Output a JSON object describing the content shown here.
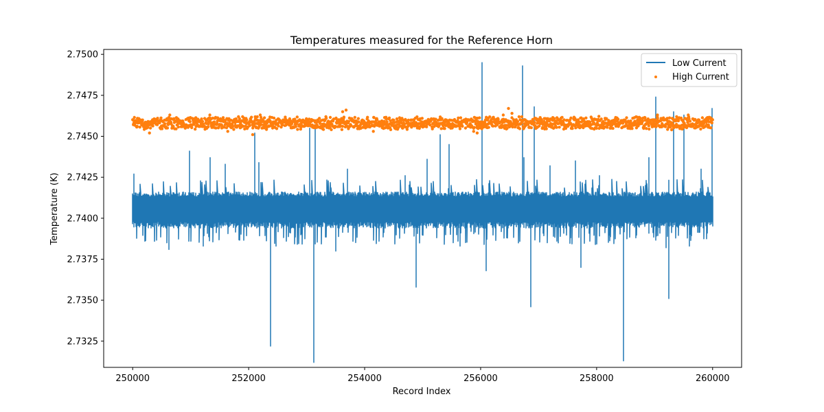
{
  "chart_data": {
    "type": "line",
    "title": "Temperatures measured for the Reference Horn",
    "xlabel": "Record Index",
    "ylabel": "Temperature (K)",
    "xlim": [
      249500,
      260500
    ],
    "ylim": [
      2.7309,
      2.7503
    ],
    "x_ticks": [
      250000,
      252000,
      254000,
      256000,
      258000,
      260000
    ],
    "x_tick_labels": [
      "250000",
      "252000",
      "254000",
      "256000",
      "258000",
      "260000"
    ],
    "y_ticks": [
      2.7325,
      2.735,
      2.7375,
      2.74,
      2.7425,
      2.745,
      2.7475,
      2.75
    ],
    "y_tick_labels": [
      "2.7325",
      "2.7350",
      "2.7375",
      "2.7400",
      "2.7425",
      "2.7450",
      "2.7475",
      "2.7500"
    ],
    "legend_position": "top-right",
    "series": [
      {
        "name": "Low Current",
        "kind": "line",
        "color": "#1f77b4",
        "x_range": [
          250000,
          260000
        ],
        "baseline": 2.7404,
        "band_low": 2.7396,
        "band_high": 2.7416,
        "upper_spikes": [
          {
            "x": 250020,
            "y": 2.7427
          },
          {
            "x": 250980,
            "y": 2.7441
          },
          {
            "x": 251330,
            "y": 2.7437
          },
          {
            "x": 252100,
            "y": 2.7452
          },
          {
            "x": 253050,
            "y": 2.7455
          },
          {
            "x": 253150,
            "y": 2.7457
          },
          {
            "x": 255300,
            "y": 2.7451
          },
          {
            "x": 255450,
            "y": 2.7445
          },
          {
            "x": 256020,
            "y": 2.7495
          },
          {
            "x": 256720,
            "y": 2.7493
          },
          {
            "x": 256920,
            "y": 2.7468
          },
          {
            "x": 259020,
            "y": 2.7474
          },
          {
            "x": 259330,
            "y": 2.7465
          },
          {
            "x": 259500,
            "y": 2.7463
          },
          {
            "x": 259990,
            "y": 2.7467
          },
          {
            "x": 251600,
            "y": 2.7433
          },
          {
            "x": 252180,
            "y": 2.7434
          },
          {
            "x": 253700,
            "y": 2.743
          },
          {
            "x": 254700,
            "y": 2.7426
          },
          {
            "x": 255080,
            "y": 2.7436
          },
          {
            "x": 256100,
            "y": 2.7434
          },
          {
            "x": 256750,
            "y": 2.7437
          },
          {
            "x": 257200,
            "y": 2.7432
          },
          {
            "x": 257640,
            "y": 2.7435
          },
          {
            "x": 258050,
            "y": 2.7426
          },
          {
            "x": 258900,
            "y": 2.7437
          },
          {
            "x": 259800,
            "y": 2.743
          }
        ],
        "lower_spikes": [
          {
            "x": 252380,
            "y": 2.7322
          },
          {
            "x": 253120,
            "y": 2.7312
          },
          {
            "x": 254890,
            "y": 2.7358
          },
          {
            "x": 256100,
            "y": 2.7368
          },
          {
            "x": 256860,
            "y": 2.7346
          },
          {
            "x": 257730,
            "y": 2.737
          },
          {
            "x": 258460,
            "y": 2.7313
          },
          {
            "x": 259250,
            "y": 2.7351
          },
          {
            "x": 250620,
            "y": 2.7381
          },
          {
            "x": 251220,
            "y": 2.7383
          },
          {
            "x": 252470,
            "y": 2.7383
          },
          {
            "x": 253500,
            "y": 2.738
          },
          {
            "x": 255650,
            "y": 2.7383
          },
          {
            "x": 257980,
            "y": 2.7384
          },
          {
            "x": 259200,
            "y": 2.7382
          },
          {
            "x": 259600,
            "y": 2.7383
          }
        ]
      },
      {
        "name": "High Current",
        "kind": "scatter",
        "color": "#ff7f0e",
        "x_range": [
          250000,
          260000
        ],
        "baseline": 2.7458,
        "band_low": 2.7455,
        "band_high": 2.7461,
        "outliers": [
          {
            "x": 250290,
            "y": 2.7452
          },
          {
            "x": 251640,
            "y": 2.7453
          },
          {
            "x": 252070,
            "y": 2.7451
          },
          {
            "x": 252200,
            "y": 2.7463
          },
          {
            "x": 253680,
            "y": 2.7466
          },
          {
            "x": 253620,
            "y": 2.7465
          },
          {
            "x": 254150,
            "y": 2.7453
          },
          {
            "x": 255880,
            "y": 2.7453
          },
          {
            "x": 255940,
            "y": 2.7452
          },
          {
            "x": 256390,
            "y": 2.7463
          },
          {
            "x": 256480,
            "y": 2.7467
          },
          {
            "x": 256540,
            "y": 2.7464
          },
          {
            "x": 250640,
            "y": 2.7463
          },
          {
            "x": 251330,
            "y": 2.7463
          },
          {
            "x": 259580,
            "y": 2.7463
          },
          {
            "x": 259050,
            "y": 2.7463
          },
          {
            "x": 259380,
            "y": 2.7462
          }
        ]
      }
    ]
  }
}
